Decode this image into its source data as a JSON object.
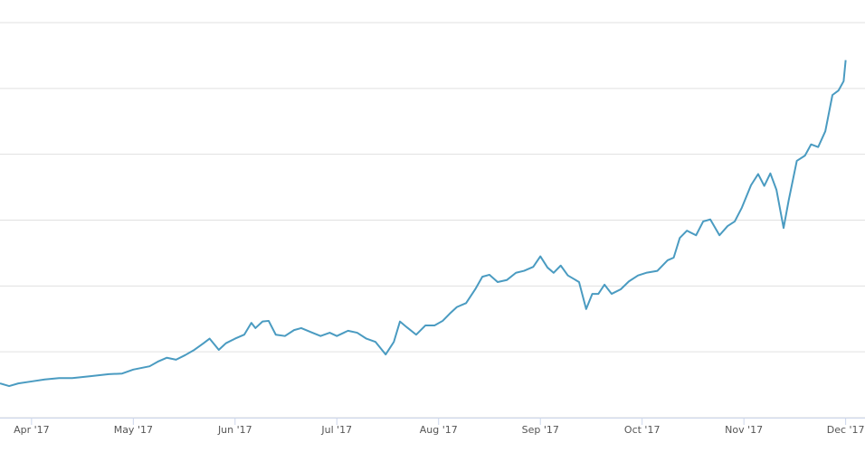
{
  "chart_data": {
    "type": "line",
    "x": [
      0.69,
      0.78,
      0.87,
      1.0,
      1.13,
      1.27,
      1.4,
      1.58,
      1.76,
      1.89,
      2.0,
      2.16,
      2.24,
      2.33,
      2.42,
      2.51,
      2.6,
      2.69,
      2.75,
      2.84,
      2.91,
      3.0,
      3.09,
      3.16,
      3.2,
      3.27,
      3.33,
      3.4,
      3.49,
      3.58,
      3.65,
      3.76,
      3.84,
      3.93,
      4.0,
      4.11,
      4.2,
      4.29,
      4.38,
      4.48,
      4.56,
      4.62,
      4.69,
      4.78,
      4.87,
      4.96,
      5.04,
      5.11,
      5.18,
      5.27,
      5.36,
      5.43,
      5.5,
      5.58,
      5.67,
      5.76,
      5.84,
      5.93,
      6.0,
      6.07,
      6.13,
      6.2,
      6.27,
      6.38,
      6.45,
      6.51,
      6.57,
      6.63,
      6.7,
      6.79,
      6.87,
      6.96,
      7.04,
      7.15,
      7.25,
      7.31,
      7.37,
      7.44,
      7.53,
      7.6,
      7.67,
      7.76,
      7.84,
      7.91,
      7.98,
      8.07,
      8.14,
      8.2,
      8.26,
      8.32,
      8.39,
      8.44,
      8.52,
      8.6,
      8.66,
      8.73,
      8.8,
      8.87,
      8.93,
      8.98,
      9.0
    ],
    "series": [
      {
        "color": "#4a9bc1",
        "values": [
          0.52,
          0.48,
          0.52,
          0.55,
          0.58,
          0.6,
          0.6,
          0.63,
          0.66,
          0.67,
          0.73,
          0.78,
          0.85,
          0.91,
          0.88,
          0.95,
          1.03,
          1.13,
          1.2,
          1.03,
          1.13,
          1.2,
          1.26,
          1.44,
          1.36,
          1.46,
          1.47,
          1.26,
          1.24,
          1.33,
          1.36,
          1.29,
          1.24,
          1.29,
          1.24,
          1.32,
          1.29,
          1.2,
          1.15,
          0.96,
          1.15,
          1.46,
          1.37,
          1.26,
          1.4,
          1.4,
          1.47,
          1.58,
          1.68,
          1.74,
          1.95,
          2.14,
          2.17,
          2.06,
          2.09,
          2.2,
          2.23,
          2.29,
          2.45,
          2.28,
          2.2,
          2.31,
          2.16,
          2.06,
          1.65,
          1.88,
          1.88,
          2.02,
          1.88,
          1.95,
          2.07,
          2.16,
          2.2,
          2.23,
          2.39,
          2.43,
          2.73,
          2.84,
          2.77,
          2.98,
          3.01,
          2.77,
          2.91,
          2.98,
          3.19,
          3.53,
          3.7,
          3.52,
          3.71,
          3.46,
          2.88,
          3.3,
          3.9,
          3.98,
          4.15,
          4.11,
          4.35,
          4.9,
          4.97,
          5.11,
          5.43
        ]
      }
    ],
    "xlim": [
      0.69,
      9.19
    ],
    "xticks": [
      {
        "value": 1,
        "label": "Apr '17"
      },
      {
        "value": 2,
        "label": "May '17"
      },
      {
        "value": 3,
        "label": "Jun '17"
      },
      {
        "value": 4,
        "label": "Jul '17"
      },
      {
        "value": 5,
        "label": "Aug '17"
      },
      {
        "value": 6,
        "label": "Sep '17"
      },
      {
        "value": 7,
        "label": "Oct '17"
      },
      {
        "value": 8,
        "label": "Nov '17"
      },
      {
        "value": 9,
        "label": "Dec '17"
      }
    ],
    "ylim": [
      0,
      6
    ],
    "yticks": [
      0,
      1,
      2,
      3,
      4,
      5,
      6
    ],
    "ytick_labels": false,
    "grid": true
  }
}
